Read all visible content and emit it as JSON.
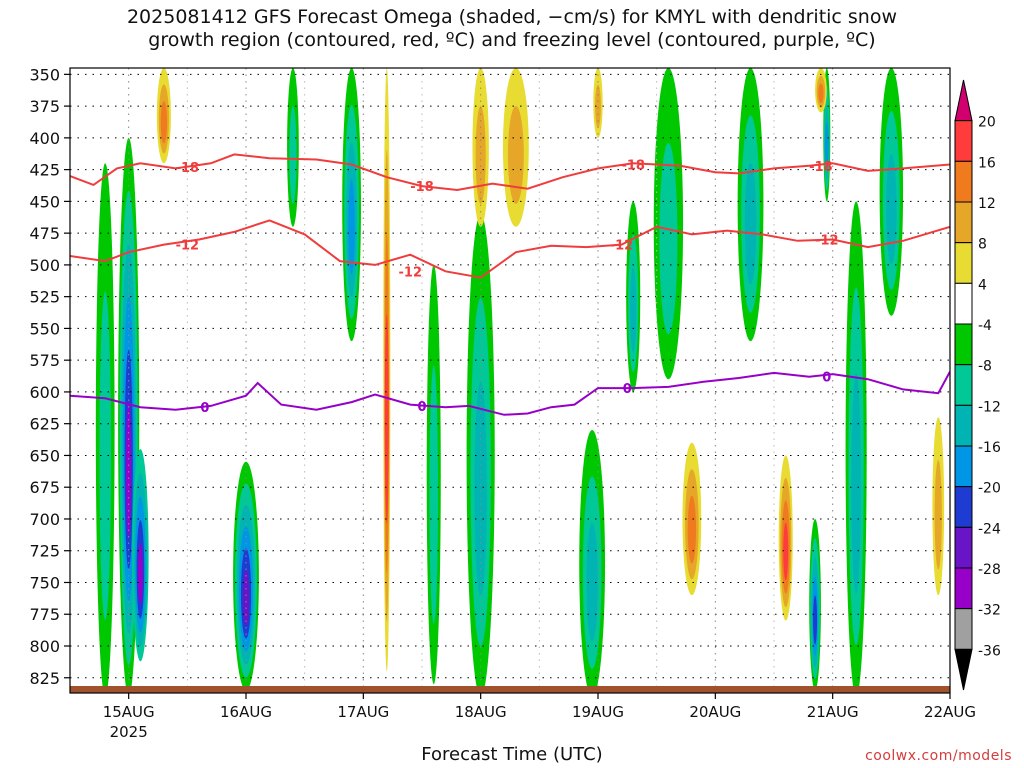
{
  "title": {
    "line1": "2025081412 GFS Forecast Omega (shaded, −cm/s) for KMYL with dendritic snow",
    "line2": "growth region (contoured, red, ºC) and freezing level (contoured, purple, ºC)"
  },
  "credit": "coolwx.com/models",
  "chart_data": {
    "type": "heatmap",
    "xlabel": "Forecast Time (UTC)",
    "x_ticks": [
      "15AUG",
      "16AUG",
      "17AUG",
      "18AUG",
      "19AUG",
      "20AUG",
      "21AUG",
      "22AUG"
    ],
    "x_subtick": "2025",
    "y_ticks": [
      350,
      375,
      400,
      425,
      450,
      475,
      500,
      525,
      550,
      575,
      600,
      625,
      650,
      675,
      700,
      725,
      750,
      775,
      800,
      825
    ],
    "ylim": [
      345,
      837
    ],
    "xlim_days": [
      14.5,
      22.0
    ],
    "colorbar": {
      "labels": [
        20,
        16,
        12,
        8,
        4,
        -4,
        -8,
        -12,
        -16,
        -20,
        -24,
        -28,
        -32,
        -36
      ],
      "colors": [
        "#d2006e",
        "#ff3c3c",
        "#f07a1e",
        "#e6a628",
        "#e8dc32",
        "#ffffff",
        "#00c800",
        "#00c896",
        "#00b4b4",
        "#0096e6",
        "#1e3cd2",
        "#6a14c8",
        "#9600c8",
        "#a0a0a0",
        "#000000"
      ]
    },
    "contours": [
      {
        "label": "-18",
        "color": "#f03c3c",
        "points": [
          [
            14.5,
            430
          ],
          [
            14.7,
            437
          ],
          [
            14.9,
            424
          ],
          [
            15.1,
            420
          ],
          [
            15.4,
            424
          ],
          [
            15.7,
            420
          ],
          [
            15.9,
            413
          ],
          [
            16.2,
            416
          ],
          [
            16.6,
            417
          ],
          [
            16.9,
            421
          ],
          [
            17.2,
            431
          ],
          [
            17.5,
            438
          ],
          [
            17.8,
            441
          ],
          [
            18.1,
            436
          ],
          [
            18.4,
            440
          ],
          [
            18.7,
            431
          ],
          [
            19.0,
            424
          ],
          [
            19.3,
            420
          ],
          [
            19.7,
            422
          ],
          [
            20.0,
            427
          ],
          [
            20.2,
            428
          ],
          [
            20.5,
            424
          ],
          [
            20.8,
            422
          ],
          [
            21.0,
            420
          ],
          [
            21.3,
            426
          ],
          [
            21.6,
            424
          ],
          [
            22.0,
            421
          ]
        ],
        "labels_at": [
          [
            15.5,
            423
          ],
          [
            17.5,
            438
          ],
          [
            19.3,
            421
          ],
          [
            20.9,
            422
          ]
        ]
      },
      {
        "label": "-12",
        "color": "#f03c3c",
        "points": [
          [
            14.5,
            493
          ],
          [
            14.8,
            497
          ],
          [
            15.0,
            490
          ],
          [
            15.3,
            484
          ],
          [
            15.6,
            480
          ],
          [
            15.9,
            474
          ],
          [
            16.2,
            465
          ],
          [
            16.5,
            476
          ],
          [
            16.8,
            497
          ],
          [
            17.1,
            500
          ],
          [
            17.4,
            492
          ],
          [
            17.7,
            505
          ],
          [
            18.0,
            510
          ],
          [
            18.3,
            490
          ],
          [
            18.6,
            485
          ],
          [
            18.9,
            486
          ],
          [
            19.2,
            484
          ],
          [
            19.5,
            470
          ],
          [
            19.8,
            476
          ],
          [
            20.1,
            473
          ],
          [
            20.4,
            476
          ],
          [
            20.7,
            481
          ],
          [
            21.0,
            480
          ],
          [
            21.3,
            486
          ],
          [
            21.6,
            481
          ],
          [
            22.0,
            470
          ]
        ],
        "labels_at": [
          [
            15.5,
            484
          ],
          [
            17.4,
            505
          ],
          [
            19.2,
            484
          ],
          [
            20.95,
            480
          ]
        ]
      },
      {
        "label": "0",
        "color": "#9600c8",
        "points": [
          [
            14.5,
            603
          ],
          [
            14.8,
            605
          ],
          [
            15.1,
            612
          ],
          [
            15.4,
            614
          ],
          [
            15.7,
            611
          ],
          [
            16.0,
            603
          ],
          [
            16.1,
            593
          ],
          [
            16.3,
            610
          ],
          [
            16.6,
            614
          ],
          [
            16.9,
            608
          ],
          [
            17.1,
            602
          ],
          [
            17.4,
            610
          ],
          [
            17.7,
            612
          ],
          [
            17.9,
            611
          ],
          [
            18.2,
            618
          ],
          [
            18.4,
            617
          ],
          [
            18.6,
            612
          ],
          [
            18.8,
            610
          ],
          [
            19.0,
            597
          ],
          [
            19.3,
            597
          ],
          [
            19.6,
            596
          ],
          [
            19.9,
            592
          ],
          [
            20.2,
            589
          ],
          [
            20.5,
            585
          ],
          [
            20.8,
            588
          ],
          [
            21.0,
            586
          ],
          [
            21.3,
            590
          ],
          [
            21.6,
            598
          ],
          [
            21.9,
            601
          ],
          [
            22.0,
            584
          ]
        ],
        "labels_at": [
          [
            15.65,
            612
          ],
          [
            17.5,
            611
          ],
          [
            19.25,
            597
          ],
          [
            20.95,
            588
          ]
        ]
      }
    ],
    "omega_blobs": [
      {
        "x": 15.0,
        "y0": 400,
        "y1": 840,
        "w": 0.18,
        "levels": [
          -4,
          -8,
          -12,
          -16,
          -20,
          -28
        ]
      },
      {
        "x": 15.1,
        "y0": 645,
        "y1": 812,
        "w": 0.14,
        "levels": [
          -8,
          -12,
          -16,
          -20,
          -28
        ]
      },
      {
        "x": 16.0,
        "y0": 655,
        "y1": 835,
        "w": 0.22,
        "levels": [
          -4,
          -8,
          -12,
          -16,
          -20,
          -24
        ]
      },
      {
        "x": 16.9,
        "y0": 345,
        "y1": 560,
        "w": 0.16,
        "levels": [
          -4,
          -8,
          -12,
          -16
        ]
      },
      {
        "x": 17.2,
        "y0": 345,
        "y1": 820,
        "w": 0.06,
        "levels": [
          4,
          8,
          12,
          16
        ]
      },
      {
        "x": 18.0,
        "y0": 460,
        "y1": 840,
        "w": 0.24,
        "levels": [
          -4,
          -8,
          -12
        ]
      },
      {
        "x": 18.0,
        "y0": 345,
        "y1": 470,
        "w": 0.14,
        "levels": [
          4,
          8
        ]
      },
      {
        "x": 18.95,
        "y0": 630,
        "y1": 840,
        "w": 0.22,
        "levels": [
          -4,
          -8,
          -12
        ]
      },
      {
        "x": 19.8,
        "y0": 640,
        "y1": 760,
        "w": 0.16,
        "levels": [
          4,
          8,
          12
        ]
      },
      {
        "x": 20.6,
        "y0": 650,
        "y1": 780,
        "w": 0.12,
        "levels": [
          4,
          8,
          12,
          16
        ]
      },
      {
        "x": 20.85,
        "y0": 700,
        "y1": 835,
        "w": 0.1,
        "levels": [
          -4,
          -8,
          -12,
          -16,
          -20
        ]
      },
      {
        "x": 21.9,
        "y0": 620,
        "y1": 760,
        "w": 0.1,
        "levels": [
          4,
          8
        ]
      },
      {
        "x": 21.5,
        "y0": 345,
        "y1": 540,
        "w": 0.2,
        "levels": [
          -4,
          -8,
          -12
        ]
      },
      {
        "x": 20.95,
        "y0": 345,
        "y1": 450,
        "w": 0.06,
        "levels": [
          -4,
          -8,
          -12,
          -16
        ]
      },
      {
        "x": 19.6,
        "y0": 345,
        "y1": 590,
        "w": 0.25,
        "levels": [
          -4,
          -8
        ]
      },
      {
        "x": 20.3,
        "y0": 345,
        "y1": 560,
        "w": 0.22,
        "levels": [
          -4,
          -8,
          -12
        ]
      },
      {
        "x": 18.3,
        "y0": 345,
        "y1": 470,
        "w": 0.22,
        "levels": [
          4,
          8
        ]
      },
      {
        "x": 15.3,
        "y0": 345,
        "y1": 420,
        "w": 0.12,
        "levels": [
          4,
          8,
          12
        ]
      },
      {
        "x": 14.8,
        "y0": 420,
        "y1": 840,
        "w": 0.16,
        "levels": [
          -4,
          -8
        ]
      },
      {
        "x": 16.4,
        "y0": 345,
        "y1": 470,
        "w": 0.1,
        "levels": [
          -4,
          -8
        ]
      },
      {
        "x": 17.6,
        "y0": 500,
        "y1": 830,
        "w": 0.12,
        "levels": [
          -4,
          -8
        ]
      },
      {
        "x": 19.3,
        "y0": 450,
        "y1": 600,
        "w": 0.12,
        "levels": [
          -4,
          -8,
          -12
        ]
      },
      {
        "x": 21.2,
        "y0": 450,
        "y1": 840,
        "w": 0.18,
        "levels": [
          -4,
          -8,
          -12
        ]
      },
      {
        "x": 19.0,
        "y0": 345,
        "y1": 400,
        "w": 0.08,
        "levels": [
          4,
          8
        ]
      },
      {
        "x": 20.9,
        "y0": 345,
        "y1": 380,
        "w": 0.1,
        "levels": [
          4,
          8,
          12
        ]
      }
    ]
  }
}
